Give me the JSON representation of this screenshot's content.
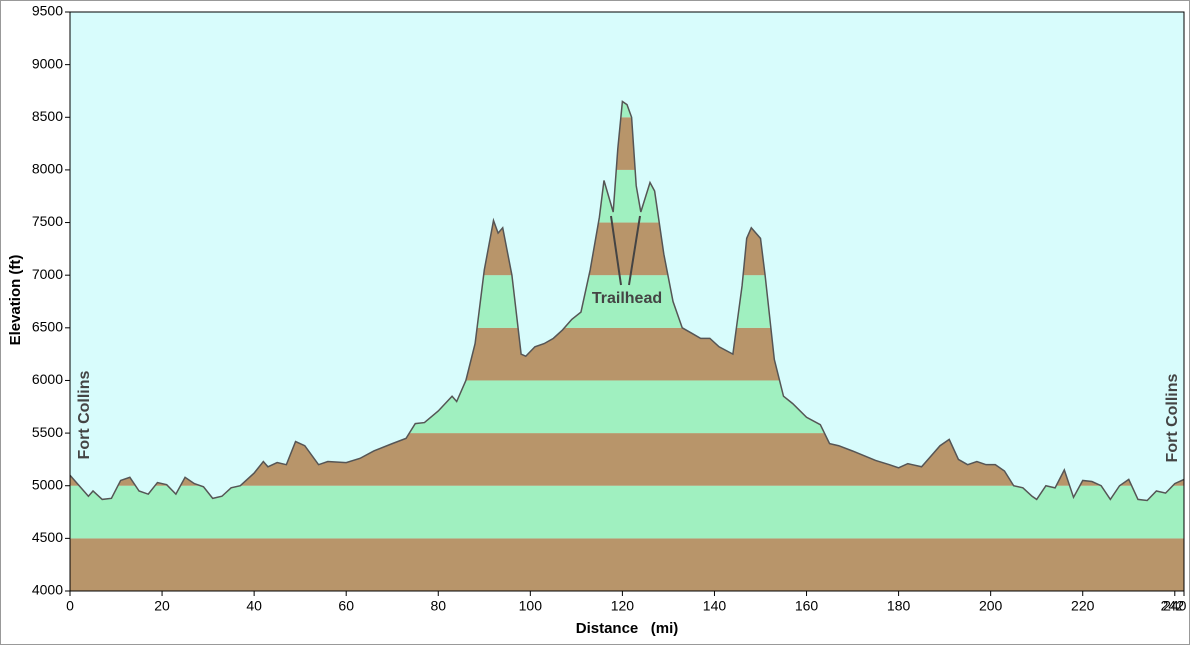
{
  "chart_data": {
    "type": "area",
    "x_label": "Distance   (mi)",
    "y_label": "Elevation (ft)",
    "annotations": [
      "Fort Collins",
      "Fort Collins",
      "Trailhead"
    ],
    "x": [
      0,
      2,
      4,
      5,
      7,
      9,
      11,
      13,
      15,
      17,
      19,
      21,
      23,
      25,
      27,
      29,
      31,
      33,
      35,
      37,
      40,
      42,
      43,
      45,
      47,
      49,
      51,
      54,
      56,
      60,
      63,
      66,
      70,
      73,
      75,
      77,
      80,
      83,
      84,
      86,
      88,
      90,
      92,
      93,
      94,
      96,
      98,
      99,
      101,
      103,
      105,
      107,
      109,
      111,
      113,
      115,
      116,
      117,
      118,
      119,
      120,
      121,
      122,
      123,
      124,
      126,
      127,
      129,
      131,
      133,
      135,
      137,
      139,
      141,
      144,
      146,
      147,
      148,
      150,
      151,
      153,
      155,
      157,
      160,
      163,
      165,
      167,
      170,
      175,
      178,
      180,
      182,
      183,
      185,
      187,
      189,
      191,
      193,
      195,
      197,
      199,
      201,
      203,
      205,
      207,
      209,
      210,
      212,
      214,
      216,
      218,
      220,
      222,
      224,
      226,
      228,
      230,
      232,
      234,
      236,
      238,
      240,
      242
    ],
    "values": [
      5100,
      5000,
      4900,
      4950,
      4870,
      4880,
      5050,
      5080,
      4950,
      4920,
      5030,
      5010,
      4920,
      5080,
      5020,
      4990,
      4880,
      4900,
      4980,
      5000,
      5120,
      5230,
      5180,
      5220,
      5200,
      5420,
      5380,
      5200,
      5230,
      5220,
      5260,
      5330,
      5400,
      5450,
      5590,
      5600,
      5710,
      5850,
      5800,
      6000,
      6350,
      7050,
      7520,
      7400,
      7450,
      7000,
      6250,
      6230,
      6320,
      6350,
      6400,
      6480,
      6580,
      6650,
      7050,
      7550,
      7900,
      7750,
      7600,
      8200,
      8650,
      8620,
      8500,
      7850,
      7600,
      7880,
      7800,
      7200,
      6750,
      6500,
      6450,
      6400,
      6400,
      6320,
      6250,
      6900,
      7350,
      7450,
      7350,
      7000,
      6200,
      5850,
      5780,
      5650,
      5580,
      5400,
      5380,
      5330,
      5240,
      5200,
      5170,
      5210,
      5200,
      5180,
      5280,
      5380,
      5440,
      5250,
      5200,
      5230,
      5200,
      5200,
      5140,
      5000,
      4980,
      4900,
      4870,
      5000,
      4980,
      5150,
      4890,
      5050,
      5040,
      5000,
      4870,
      5000,
      5060,
      4870,
      4860,
      4950,
      4930,
      5020,
      5060
    ],
    "line_color": "#555555",
    "band_colors": [
      "#b8956a",
      "#a0f0c0"
    ],
    "background": "#d8fcfc",
    "xlim": [
      0,
      242
    ],
    "ylim": [
      4000,
      9500
    ],
    "xticks": [
      0,
      20,
      40,
      60,
      80,
      100,
      120,
      140,
      160,
      180,
      200,
      220,
      240,
      242
    ],
    "yticks": [
      4000,
      4500,
      5000,
      5500,
      6000,
      6500,
      7000,
      7500,
      8000,
      8500,
      9000,
      9500
    ]
  }
}
